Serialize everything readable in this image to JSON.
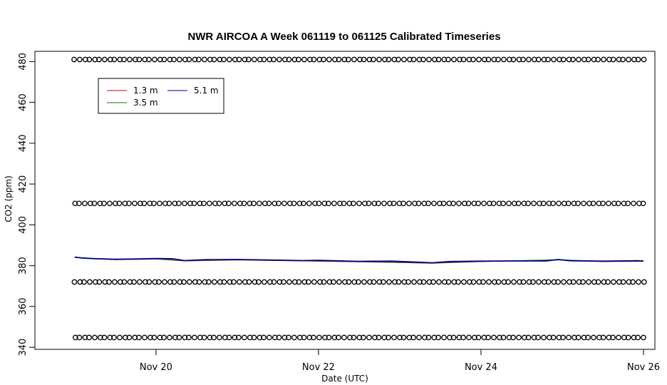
{
  "chart_data": {
    "type": "scatter",
    "title": "NWR AIRCOA A  Week 061119 to 061125  Calibrated Timeseries",
    "xlabel": "Date (UTC)",
    "ylabel": "CO2 (ppm)",
    "x_ticks": [
      {
        "day": 20,
        "label": "Nov 20"
      },
      {
        "day": 22,
        "label": "Nov 22"
      },
      {
        "day": 24,
        "label": "Nov 24"
      },
      {
        "day": 26,
        "label": "Nov 26"
      }
    ],
    "xlim": [
      18.51,
      26.14
    ],
    "y_ticks": [
      340,
      360,
      380,
      400,
      420,
      440,
      460,
      480
    ],
    "ylim": [
      339,
      485
    ],
    "grid": false,
    "legend": {
      "position": "top-left",
      "entries": [
        {
          "label": "1.3 m",
          "color": "#cc0000"
        },
        {
          "label": "5.1 m",
          "color": "#00008b"
        },
        {
          "label": "3.5 m",
          "color": "#008000"
        }
      ]
    },
    "calibration_standards": {
      "marker": "open-circle",
      "color": "#000000",
      "levels_ppm": [
        481,
        410.5,
        372,
        344.8
      ],
      "x_start_day": 19.0,
      "x_end_day": 26.0,
      "approx_points_per_level": 115
    },
    "series": [
      {
        "name": "5.1 m",
        "color": "#00008b",
        "x_day": [
          19.0,
          19.1,
          19.2,
          19.5,
          19.8,
          20.0,
          20.2,
          20.35,
          20.6,
          21.0,
          21.5,
          21.8,
          22.0,
          22.5,
          22.9,
          23.1,
          23.4,
          23.6,
          24.0,
          24.4,
          24.8,
          24.95,
          25.1,
          25.5,
          25.9,
          26.0
        ],
        "y_ppm": [
          384.2,
          383.7,
          383.5,
          383.1,
          383.3,
          383.5,
          383.4,
          382.5,
          382.9,
          383.0,
          382.7,
          382.5,
          382.6,
          382.1,
          382.2,
          381.9,
          381.4,
          382.0,
          382.2,
          382.3,
          382.3,
          383.0,
          382.4,
          382.2,
          382.4,
          382.3
        ]
      },
      {
        "name": "3.5 m",
        "color": "#008000",
        "x_day": [
          19.0,
          19.5,
          20.0,
          20.35,
          21.0,
          21.8,
          22.5,
          23.4,
          24.0,
          24.95,
          25.5,
          26.0
        ],
        "y_ppm": [
          384.1,
          383.0,
          383.4,
          382.4,
          382.9,
          382.4,
          382.0,
          381.3,
          382.1,
          382.9,
          382.1,
          382.2
        ]
      },
      {
        "name": "1.3 m",
        "color": "#cc0000",
        "x_day": [
          19.0,
          19.5,
          20.0,
          20.35,
          21.0,
          21.8,
          22.5,
          23.4,
          24.0,
          24.95,
          25.5,
          26.0
        ],
        "y_ppm": [
          384.0,
          382.9,
          383.3,
          382.3,
          382.8,
          382.3,
          381.9,
          381.2,
          382.0,
          382.8,
          382.0,
          382.1
        ]
      }
    ]
  }
}
